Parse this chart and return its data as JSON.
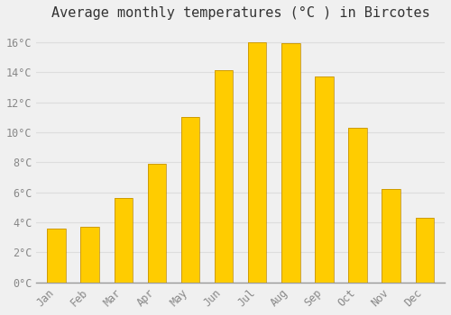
{
  "title": "Average monthly temperatures (°C ) in Bircotes",
  "months": [
    "Jan",
    "Feb",
    "Mar",
    "Apr",
    "May",
    "Jun",
    "Jul",
    "Aug",
    "Sep",
    "Oct",
    "Nov",
    "Dec"
  ],
  "values": [
    3.6,
    3.7,
    5.6,
    7.9,
    11.0,
    14.1,
    16.0,
    15.9,
    13.7,
    10.3,
    6.2,
    4.3
  ],
  "bar_color": "#FFA500",
  "bar_edge_color": "#CC8800",
  "background_color": "#F0F0F0",
  "grid_color": "#DDDDDD",
  "ylim": [
    0,
    17
  ],
  "yticks": [
    0,
    2,
    4,
    6,
    8,
    10,
    12,
    14,
    16
  ],
  "ytick_labels": [
    "0°C",
    "2°C",
    "4°C",
    "6°C",
    "8°C",
    "10°C",
    "12°C",
    "14°C",
    "16°C"
  ],
  "title_fontsize": 11,
  "tick_fontsize": 8.5,
  "tick_color": "#888888",
  "title_color": "#333333"
}
